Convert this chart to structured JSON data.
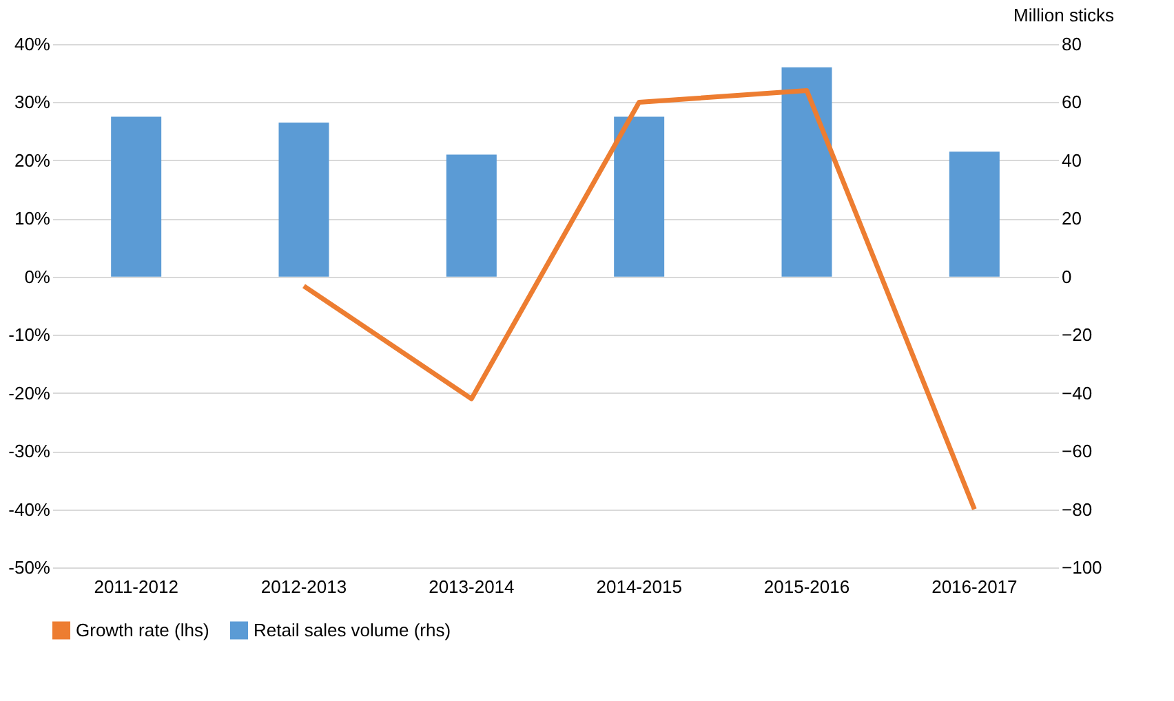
{
  "chart_data": {
    "type": "bar",
    "categories": [
      "2011-2012",
      "2012-2013",
      "2013-2014",
      "2014-2015",
      "2015-2016",
      "2016-2017"
    ],
    "series": [
      {
        "name": "Growth rate (lhs)",
        "type": "line",
        "color": "#ed7d31",
        "values": [
          null,
          -1.6,
          -21,
          30,
          32,
          -40
        ]
      },
      {
        "name": "Retail sales volume (rhs)",
        "color": "#5b9bd5",
        "axis": "y2",
        "values": [
          55,
          53,
          42,
          55,
          72,
          43
        ]
      }
    ],
    "ylim": [
      -50,
      40
    ],
    "yticks": [
      {
        "value": -50,
        "label": "-50%"
      },
      {
        "value": -40,
        "label": "-40%"
      },
      {
        "value": -30,
        "label": "-30%"
      },
      {
        "value": -20,
        "label": "-20%"
      },
      {
        "value": -10,
        "label": "-10%"
      },
      {
        "value": 0,
        "label": "0%"
      },
      {
        "value": 10,
        "label": "10%"
      },
      {
        "value": 20,
        "label": "20%"
      },
      {
        "value": 30,
        "label": "30%"
      },
      {
        "value": 40,
        "label": "40%"
      }
    ],
    "y2lim": [
      -100,
      80
    ],
    "y2ticks": [
      -100,
      -80,
      -60,
      -40,
      -20,
      0,
      20,
      40,
      60,
      80
    ],
    "y2label": "Million sticks",
    "grid": "y",
    "legend": "bottom",
    "line_style": "solid",
    "marker": "none"
  }
}
